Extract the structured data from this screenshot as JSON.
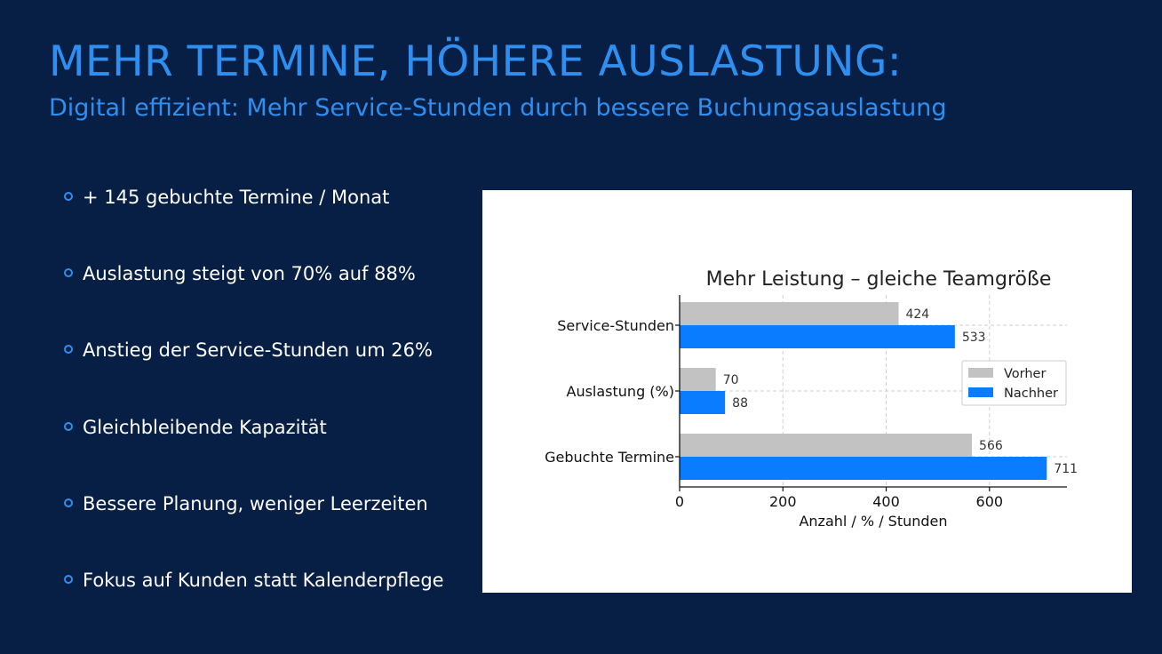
{
  "slide": {
    "title": "MEHR TERMINE, HÖHERE AUSLASTUNG:",
    "subtitle": "Digital effizient: Mehr Service-Stunden durch bessere Buchungsauslastung"
  },
  "bullets": [
    {
      "text": "+ 145 gebuchte Termine / Monat",
      "icon": "circle-bullet-icon"
    },
    {
      "text": "Auslastung steigt von 70% auf 88%",
      "icon": "circle-bullet-icon"
    },
    {
      "text": "Anstieg der Service-Stunden um 26%",
      "icon": "circle-bullet-icon"
    },
    {
      "text": "Gleichbleibende Kapazität",
      "icon": "circle-bullet-icon"
    },
    {
      "text": "Bessere Planung, weniger Leerzeiten",
      "icon": "circle-bullet-icon"
    },
    {
      "text": "Fokus auf Kunden statt Kalenderpflege",
      "icon": "circle-bullet-icon"
    }
  ],
  "colors": {
    "background": "#071f45",
    "accent": "#2f8ff0",
    "bullet_text": "#ffffff",
    "vorher": "#c2c2c2",
    "nachher": "#0a7cff"
  },
  "chart_data": {
    "type": "bar",
    "orientation": "horizontal",
    "title": "Mehr Leistung – gleiche Teamgröße",
    "xlabel": "Anzahl / % / Stunden",
    "ylabel": "",
    "categories": [
      "Service-Stunden",
      "Auslastung (%)",
      "Gebuchte Termine"
    ],
    "series": [
      {
        "name": "Vorher",
        "values": [
          424,
          70,
          566
        ],
        "color": "#c2c2c2"
      },
      {
        "name": "Nachher",
        "values": [
          533,
          88,
          711
        ],
        "color": "#0a7cff"
      }
    ],
    "xlim": [
      0,
      750
    ],
    "xticks": [
      0,
      200,
      400,
      600
    ],
    "grid": true,
    "legend": "right"
  }
}
